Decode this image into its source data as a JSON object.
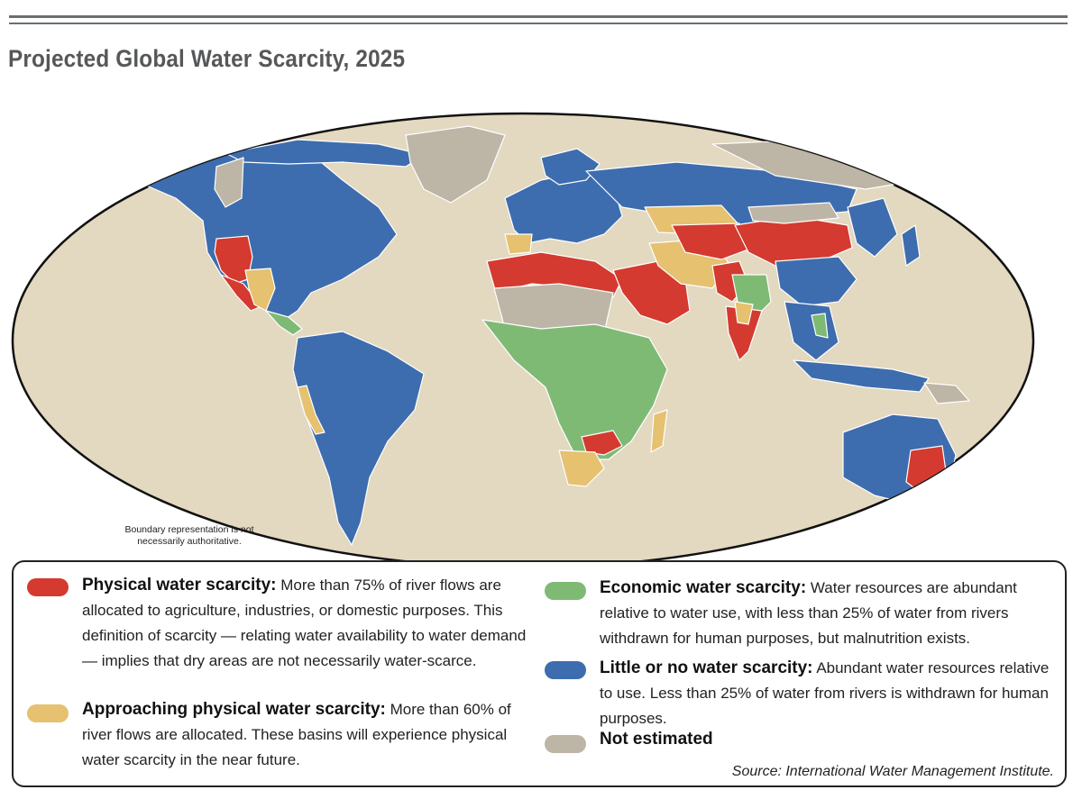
{
  "title": "Projected Global Water Scarcity, 2025",
  "map": {
    "disclaimer": "Boundary representation is not necessarily authoritative.",
    "ocean_color": "#e3d8c0",
    "border_color": "#ffffff"
  },
  "legend": {
    "items": [
      {
        "key": "physical",
        "term": "Physical water scarcity:",
        "desc": "More than 75% of river flows are allocated to agriculture, industries, or domestic purposes. This definition of scarcity — relating water availability to water demand — implies that dry areas are not necessarily water-scarce.",
        "color": "#d43a2f"
      },
      {
        "key": "approaching",
        "term": "Approaching physical water scarcity:",
        "desc": "More than 60% of river flows are allocated. These basins will experience physical water scarcity in the near future.",
        "color": "#e5c170"
      },
      {
        "key": "economic",
        "term": "Economic water scarcity:",
        "desc": "Water resources are abundant relative to water use, with less than 25% of water from rivers withdrawn for human purposes, but malnutrition exists.",
        "color": "#7fba75"
      },
      {
        "key": "little",
        "term": "Little or no water scarcity:",
        "desc": "Abundant water resources relative to use. Less than 25% of water from rivers is withdrawn for human purposes.",
        "color": "#3d6dae"
      },
      {
        "key": "not_estimated",
        "term": "Not estimated",
        "desc": "",
        "color": "#bdb5a6"
      }
    ],
    "source": "Source: International Water Management Institute."
  }
}
